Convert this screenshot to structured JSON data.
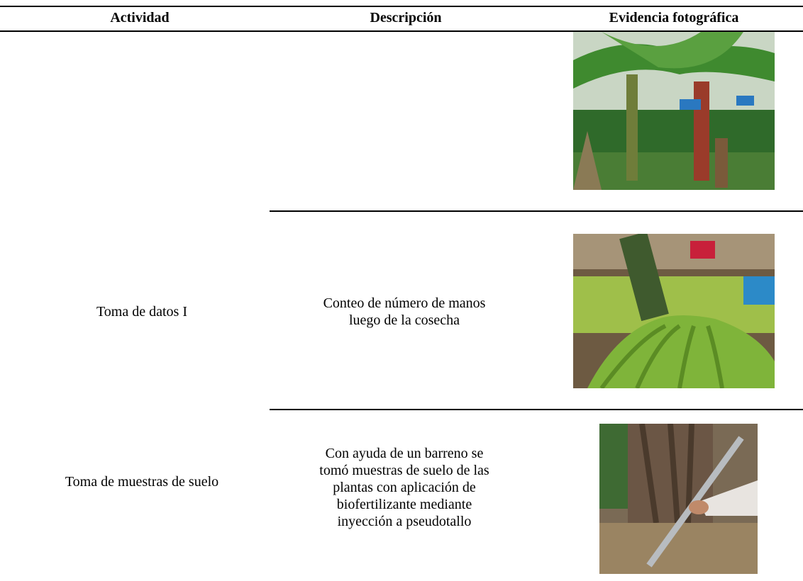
{
  "table": {
    "header": [
      "Actividad",
      "Descripción",
      "Evidencia fotográfica"
    ],
    "rows": [
      {
        "activity": "Toma de datos I",
        "description": [
          "Conteo de número de manos",
          "luego de la cosecha"
        ]
      },
      {
        "activity": "Toma de muestras de suelo",
        "description": [
          "Con ayuda de un barreno se",
          "tomó muestras de suelo de las",
          "plantas con aplicación de",
          "biofertilizante mediante",
          "inyección a pseudotallo"
        ]
      }
    ]
  }
}
